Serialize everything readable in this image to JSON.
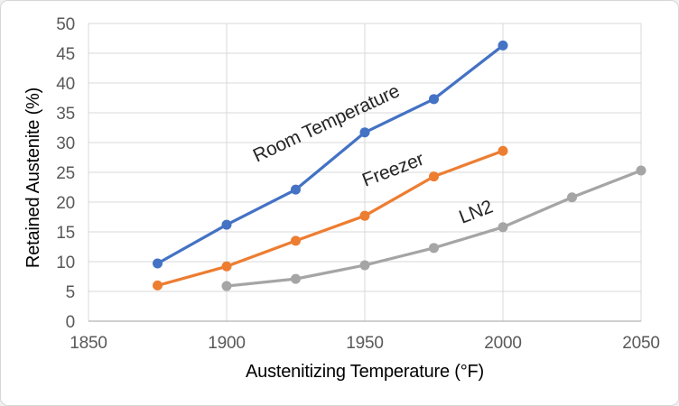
{
  "window": {
    "background": "#FFFFFF",
    "border_color": "#D7D7D7"
  },
  "chart_data": {
    "type": "line",
    "title": "",
    "xlabel": "Austenitizing Temperature (°F)",
    "ylabel": "Retained Austenite (%)",
    "xlim": [
      1850,
      2050
    ],
    "ylim": [
      0,
      50
    ],
    "x_ticks": [
      1850,
      1900,
      1950,
      2000,
      2050
    ],
    "y_ticks": [
      0,
      5,
      10,
      15,
      20,
      25,
      30,
      35,
      40,
      45,
      50
    ],
    "grid": true,
    "legend_position": "inline-data-labels",
    "series": [
      {
        "name": "Room Temperature",
        "color": "#4472C4",
        "x": [
          1875,
          1900,
          1925,
          1950,
          1975,
          2000
        ],
        "values": [
          9.7,
          16.2,
          22.1,
          31.7,
          37.3,
          46.3
        ],
        "label": {
          "x": 1937,
          "y": 32.3,
          "angle": -25
        }
      },
      {
        "name": "Freezer",
        "color": "#ED7D31",
        "x": [
          1875,
          1900,
          1925,
          1950,
          1975,
          2000
        ],
        "values": [
          6.0,
          9.2,
          13.5,
          17.7,
          24.3,
          28.6
        ],
        "label": {
          "x": 1961,
          "y": 24.5,
          "angle": -21
        }
      },
      {
        "name": "LN2",
        "color": "#A5A5A5",
        "x": [
          1900,
          1925,
          1950,
          1975,
          2000,
          2025,
          2050
        ],
        "values": [
          5.9,
          7.1,
          9.4,
          12.3,
          15.8,
          20.8,
          25.3
        ],
        "label": {
          "x": 1991,
          "y": 17.4,
          "angle": -21
        }
      }
    ],
    "style": {
      "gridline_color": "#D9D9D9",
      "axis_line_color": "#BFBFBF",
      "tick_label_color": "#595959",
      "axis_title_color": "#595959",
      "series_label_color": "#262626",
      "line_width": 3.25,
      "marker_radius": 5.5
    }
  }
}
